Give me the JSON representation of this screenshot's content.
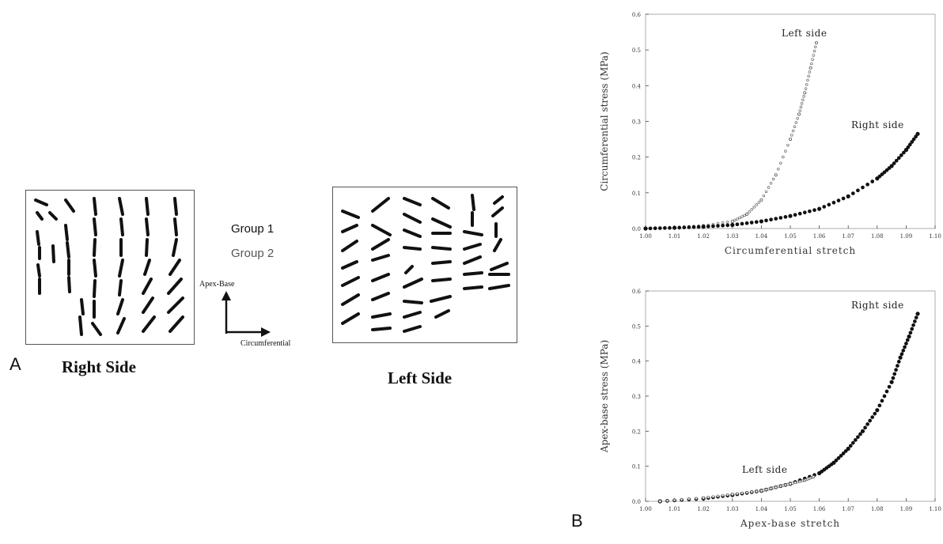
{
  "panel_a": {
    "letter": "A",
    "right_title": "Right Side",
    "left_title": "Left Side",
    "legend": [
      "Group 1",
      "Group 2"
    ],
    "axes": {
      "vertical": "Apex-Base",
      "horizontal": "Circumferential"
    }
  },
  "panel_b": {
    "letter": "B"
  },
  "chart_data": [
    {
      "type": "scatter",
      "xlabel": "Circumferential stretch",
      "ylabel": "Circumferential stress (MPa)",
      "xlim": [
        1.0,
        1.1
      ],
      "ylim": [
        0.0,
        0.6
      ],
      "xticks": [
        "1.00",
        "1.01",
        "1.02",
        "1.03",
        "1.04",
        "1.05",
        "1.06",
        "1.07",
        "1.08",
        "1.09",
        "1.10"
      ],
      "yticks": [
        "0.0",
        "0.1",
        "0.2",
        "0.3",
        "0.4",
        "0.5",
        "0.6"
      ],
      "series": [
        {
          "name": "Left side",
          "x": [
            1.0,
            1.01,
            1.02,
            1.03,
            1.035,
            1.04,
            1.045,
            1.05,
            1.053,
            1.055,
            1.057,
            1.059
          ],
          "y": [
            0.0,
            0.003,
            0.008,
            0.02,
            0.04,
            0.08,
            0.15,
            0.25,
            0.32,
            0.38,
            0.45,
            0.52
          ]
        },
        {
          "name": "Right side",
          "x": [
            1.0,
            1.01,
            1.02,
            1.03,
            1.04,
            1.05,
            1.06,
            1.07,
            1.08,
            1.085,
            1.09,
            1.094
          ],
          "y": [
            0.0,
            0.002,
            0.005,
            0.01,
            0.02,
            0.035,
            0.055,
            0.09,
            0.14,
            0.175,
            0.22,
            0.265
          ]
        }
      ]
    },
    {
      "type": "scatter",
      "xlabel": "Apex-base stretch",
      "ylabel": "Apex-base stress (MPa)",
      "xlim": [
        1.0,
        1.1
      ],
      "ylim": [
        0.0,
        0.6
      ],
      "xticks": [
        "1.00",
        "1.01",
        "1.02",
        "1.03",
        "1.04",
        "1.05",
        "1.06",
        "1.07",
        "1.08",
        "1.09",
        "1.10"
      ],
      "yticks": [
        "0.0",
        "0.1",
        "0.2",
        "0.3",
        "0.4",
        "0.5",
        "0.6"
      ],
      "series": [
        {
          "name": "Right side",
          "x": [
            1.005,
            1.02,
            1.03,
            1.04,
            1.05,
            1.06,
            1.065,
            1.07,
            1.075,
            1.08,
            1.085,
            1.088,
            1.091,
            1.094
          ],
          "y": [
            0.0,
            0.008,
            0.018,
            0.03,
            0.05,
            0.08,
            0.11,
            0.15,
            0.2,
            0.26,
            0.34,
            0.41,
            0.47,
            0.535
          ]
        },
        {
          "name": "Left side",
          "x": [
            1.005,
            1.02,
            1.03,
            1.04,
            1.045,
            1.05,
            1.055,
            1.058
          ],
          "y": [
            0.0,
            0.01,
            0.02,
            0.03,
            0.04,
            0.05,
            0.06,
            0.07
          ]
        }
      ]
    }
  ]
}
